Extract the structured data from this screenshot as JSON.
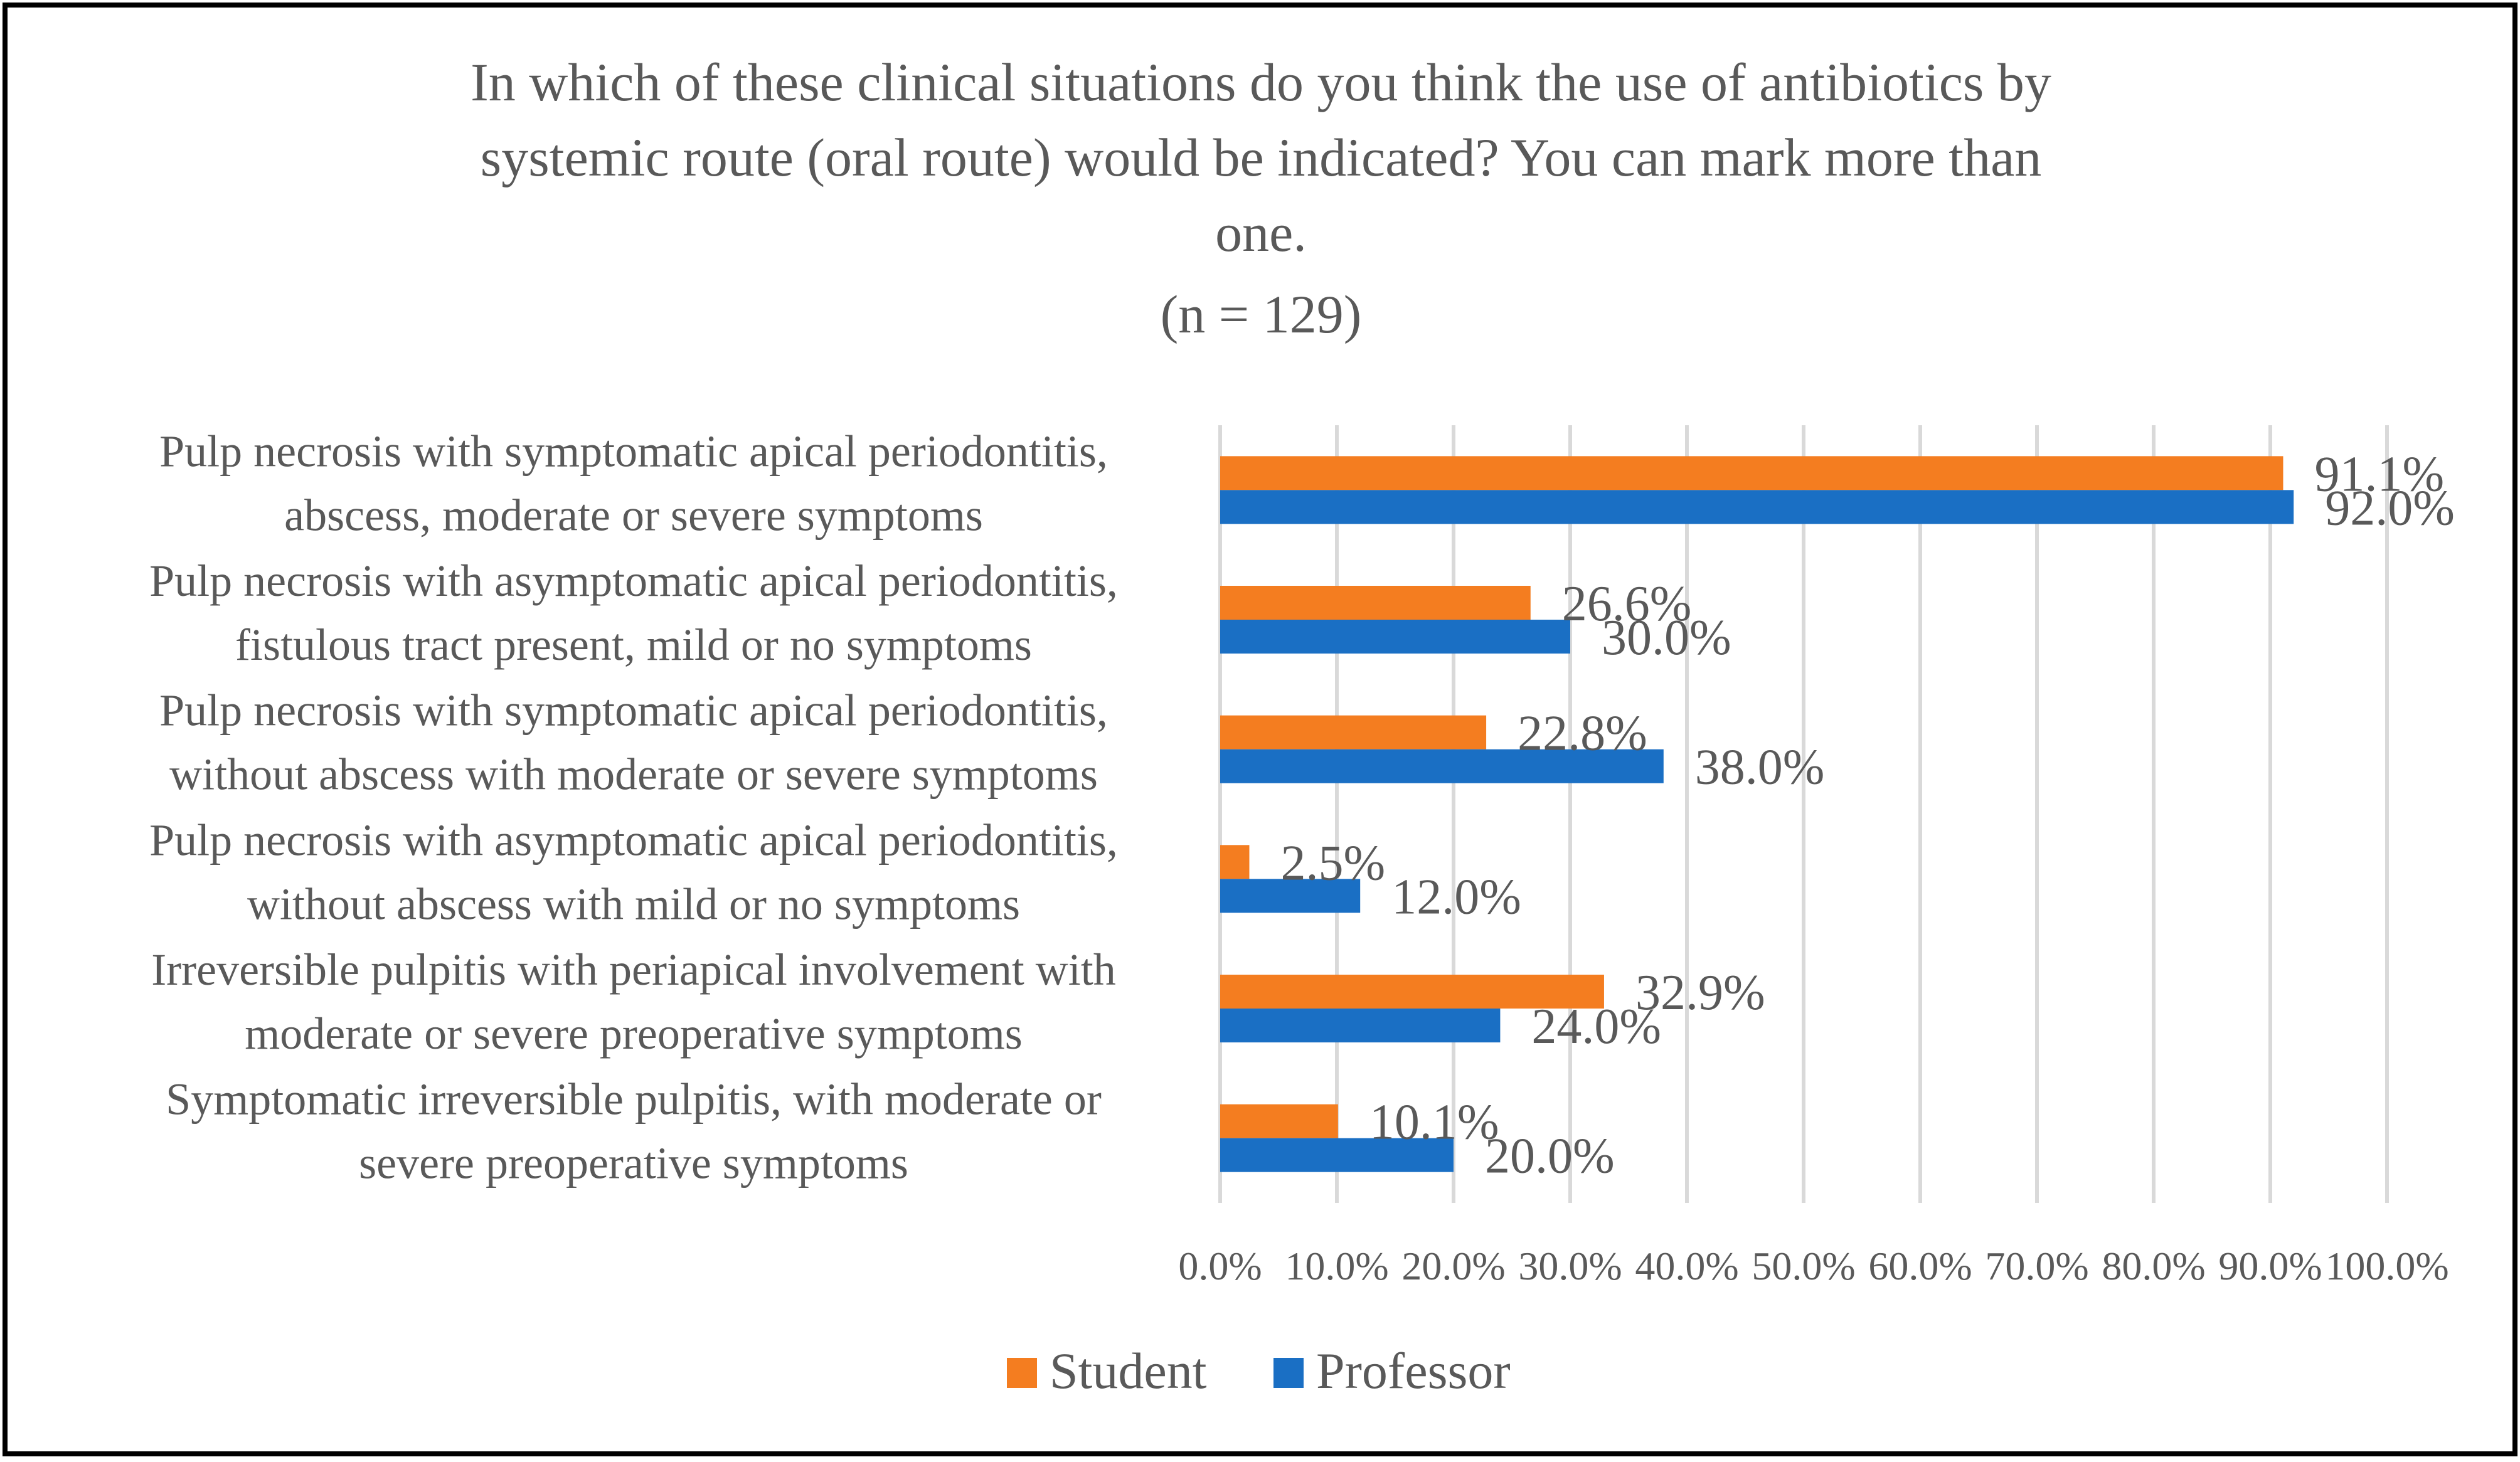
{
  "chart_data": {
    "type": "bar",
    "orientation": "horizontal",
    "title_lines": [
      "In which of these clinical situations do you think the use of antibiotics by",
      "systemic route (oral route) would be indicated? You can mark more than",
      "one.",
      "(n = 129)"
    ],
    "categories": [
      {
        "lines": [
          "Pulp necrosis with symptomatic apical periodontitis,",
          "abscess, moderate or severe symptoms"
        ]
      },
      {
        "lines": [
          "Pulp necrosis with asymptomatic apical periodontitis,",
          "fistulous tract present, mild or no symptoms"
        ]
      },
      {
        "lines": [
          "Pulp necrosis with symptomatic apical periodontitis,",
          "without abscess with moderate or severe symptoms"
        ]
      },
      {
        "lines": [
          "Pulp necrosis with asymptomatic apical periodontitis,",
          "without abscess with mild or no symptoms"
        ]
      },
      {
        "lines": [
          "Irreversible pulpitis with periapical involvement with",
          "moderate or severe preoperative symptoms"
        ]
      },
      {
        "lines": [
          "Symptomatic irreversible pulpitis, with moderate or",
          "severe preoperative symptoms"
        ]
      }
    ],
    "series": [
      {
        "name": "Student",
        "color": "#F47D20",
        "values": [
          91.1,
          26.6,
          22.8,
          2.5,
          32.9,
          10.1
        ],
        "labels": [
          "91.1%",
          "26.6%",
          "22.8%",
          "2.5%",
          "32.9%",
          "10.1%"
        ]
      },
      {
        "name": "Professor",
        "color": "#1A6FC4",
        "values": [
          92.0,
          30.0,
          38.0,
          12.0,
          24.0,
          20.0
        ],
        "labels": [
          "92.0%",
          "30.0%",
          "38.0%",
          "12.0%",
          "24.0%",
          "20.0%"
        ]
      }
    ],
    "xlim": [
      0,
      100
    ],
    "x_ticks": [
      0,
      10,
      20,
      30,
      40,
      50,
      60,
      70,
      80,
      90,
      100
    ],
    "x_tick_labels": [
      "0.0%",
      "10.0%",
      "20.0%",
      "30.0%",
      "40.0%",
      "50.0%",
      "60.0%",
      "70.0%",
      "80.0%",
      "90.0%",
      "100.0%"
    ],
    "grid": true,
    "legend_position": "bottom",
    "gridline_color": "#D9D9D9",
    "border_color": "#000000"
  }
}
